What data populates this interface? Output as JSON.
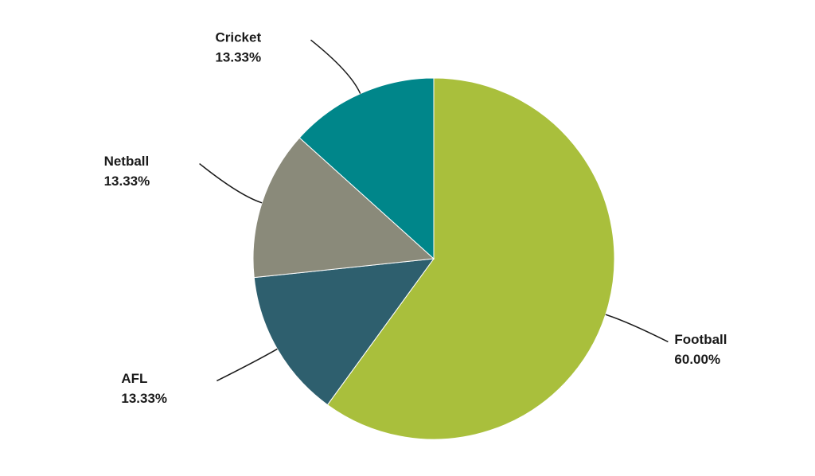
{
  "chart_data": {
    "type": "pie",
    "categories": [
      "Football",
      "AFL",
      "Netball",
      "Cricket"
    ],
    "values": [
      60,
      13.33,
      13.33,
      13.33
    ],
    "value_labels": [
      "60.00%",
      "13.33%",
      "13.33%",
      "13.33%"
    ],
    "colors": [
      "#a9bf3c",
      "#2e5f6e",
      "#8a8a7a",
      "#00868a"
    ]
  }
}
